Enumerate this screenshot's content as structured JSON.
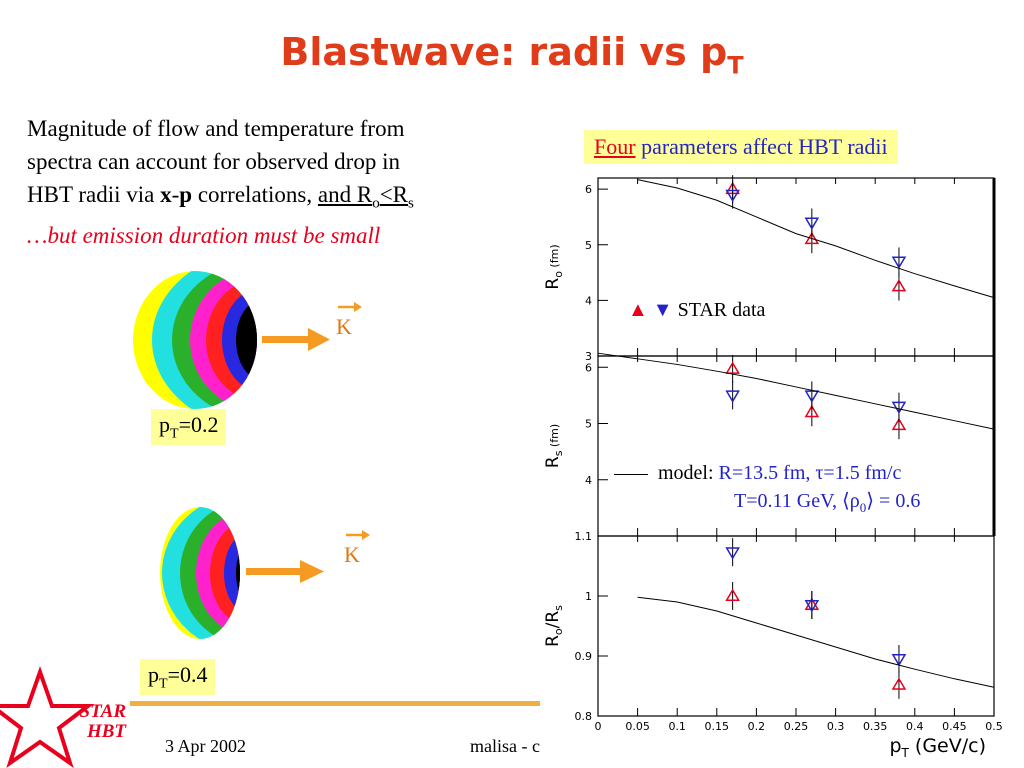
{
  "slide": {
    "title_main": "Blastwave: radii vs p",
    "title_sub": "T",
    "intro_line1": "Magnitude of flow and temperature from",
    "intro_line2": "spectra can account for observed drop in",
    "intro_line3_pre": "HBT radii via ",
    "intro_x": "x",
    "intro_dash": "-",
    "intro_p": "p",
    "intro_line3_mid": " correlations, ",
    "intro_and": "and R",
    "intro_o": "o",
    "intro_lt": "<R",
    "intro_s": "s",
    "caveat": "…but emission duration must be small",
    "pt1_p": "p",
    "pt1_T": "T",
    "pt1_val": "=0.2",
    "pt2_p": "p",
    "pt2_T": "T",
    "pt2_val": "=0.4",
    "k_label": "K",
    "four_word": "Four",
    "four_rest": " parameters affect HBT radii",
    "legend_star": "STAR data",
    "legend_model_label": "model: ",
    "legend_model_params1": "R=13.5 fm,     τ=1.5 fm/c",
    "legend_model_params2a": "T=0.11 GeV,  ⟨ρ",
    "legend_model_params2sub": "0",
    "legend_model_params2b": "⟩ = 0.6",
    "footer_date": "3 Apr 2002",
    "footer_author": "malisa - c",
    "logo_star": "STAR",
    "logo_hbt": "HBT"
  },
  "colors": {
    "title": "#e03c1a",
    "star_red": "#e8001c",
    "star_blue": "#2323c8",
    "arrow": "#f59a23",
    "box": "#ffff99"
  },
  "chart_data": [
    {
      "type": "scatter",
      "ylabel": "R_o (fm)",
      "xlim": [
        0,
        0.5
      ],
      "ylim": [
        3,
        6.2
      ],
      "yticks": [
        3,
        4,
        5,
        6
      ],
      "series": [
        {
          "name": "STAR data",
          "marker": "triangle-up",
          "color": "#e8001c",
          "x": [
            0.17,
            0.27,
            0.38
          ],
          "y": [
            6.0,
            5.1,
            4.25
          ]
        },
        {
          "name": "STAR data",
          "marker": "triangle-down",
          "color": "#2323c8",
          "x": [
            0.17,
            0.27,
            0.38
          ],
          "y": [
            5.9,
            5.4,
            4.7
          ]
        },
        {
          "name": "model",
          "marker": "line",
          "x": [
            0.05,
            0.1,
            0.15,
            0.2,
            0.25,
            0.3,
            0.35,
            0.4,
            0.45,
            0.5
          ],
          "y": [
            6.17,
            6.02,
            5.8,
            5.5,
            5.2,
            4.98,
            4.72,
            4.48,
            4.26,
            4.05
          ]
        }
      ]
    },
    {
      "type": "scatter",
      "ylabel": "R_s (fm)",
      "xlim": [
        0,
        0.5
      ],
      "ylim": [
        3,
        6.2
      ],
      "yticks": [
        4,
        5,
        6
      ],
      "series": [
        {
          "name": "STAR data",
          "marker": "triangle-up",
          "color": "#e8001c",
          "x": [
            0.17,
            0.27,
            0.38
          ],
          "y": [
            5.97,
            5.2,
            4.97
          ]
        },
        {
          "name": "STAR data",
          "marker": "triangle-down",
          "color": "#2323c8",
          "x": [
            0.17,
            0.27,
            0.38
          ],
          "y": [
            5.5,
            5.5,
            5.3
          ]
        },
        {
          "name": "model",
          "marker": "line",
          "x": [
            0.0,
            0.05,
            0.1,
            0.15,
            0.2,
            0.25,
            0.3,
            0.35,
            0.4,
            0.45,
            0.5
          ],
          "y": [
            6.25,
            6.15,
            6.05,
            5.93,
            5.8,
            5.65,
            5.5,
            5.35,
            5.2,
            5.05,
            4.9
          ]
        }
      ]
    },
    {
      "type": "scatter",
      "ylabel": "R_o/R_s",
      "xlabel": "p_T (GeV/c)",
      "xlim": [
        0,
        0.5
      ],
      "ylim": [
        0.8,
        1.1
      ],
      "yticks": [
        0.8,
        0.9,
        1,
        1.1
      ],
      "xticks": [
        0,
        0.05,
        0.1,
        0.15,
        0.2,
        0.25,
        0.3,
        0.35,
        0.4,
        0.45,
        0.5
      ],
      "series": [
        {
          "name": "STAR data",
          "marker": "triangle-up",
          "color": "#e8001c",
          "x": [
            0.17,
            0.27,
            0.38
          ],
          "y": [
            1.0,
            0.985,
            0.852
          ]
        },
        {
          "name": "STAR data",
          "marker": "triangle-down",
          "color": "#2323c8",
          "x": [
            0.17,
            0.27,
            0.38
          ],
          "y": [
            1.073,
            0.985,
            0.895
          ]
        },
        {
          "name": "model",
          "marker": "line",
          "x": [
            0.05,
            0.1,
            0.15,
            0.2,
            0.25,
            0.3,
            0.35,
            0.4,
            0.45,
            0.5
          ],
          "y": [
            0.998,
            0.99,
            0.975,
            0.955,
            0.935,
            0.915,
            0.895,
            0.878,
            0.862,
            0.848
          ]
        }
      ]
    }
  ]
}
